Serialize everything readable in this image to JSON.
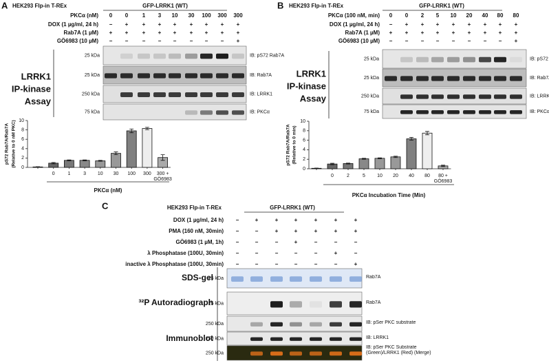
{
  "panels": [
    {
      "label": "A",
      "cell_line": "HEK293 Flp-in T-REx",
      "construct": "GFP-LRRK1 (WT)",
      "conditions": [
        {
          "name": "PKCα (nM)",
          "lanes": [
            "0",
            "0",
            "1",
            "3",
            "10",
            "30",
            "100",
            "300",
            "300"
          ]
        },
        {
          "name": "DOX (1 µg/ml, 24 h)",
          "lanes": [
            "−",
            "+",
            "+",
            "+",
            "+",
            "+",
            "+",
            "+",
            "+"
          ]
        },
        {
          "name": "Rab7A (1 µM)",
          "lanes": [
            "+",
            "+",
            "+",
            "+",
            "+",
            "+",
            "+",
            "+",
            "+"
          ]
        },
        {
          "name": "GÖ6983 (10 µM)",
          "lanes": [
            "−",
            "−",
            "−",
            "−",
            "−",
            "−",
            "−",
            "−",
            "+"
          ]
        }
      ],
      "assay": [
        "LRRK1",
        "IP-kinase",
        "Assay"
      ],
      "blots": [
        {
          "marker": "25 kDa",
          "label": "IB: pS72 Rab7A"
        },
        {
          "marker": "25 kDa",
          "label": "IB: Rab7A"
        },
        {
          "marker": "250 kDa",
          "label": "IB: LRRK1"
        },
        {
          "marker": "75 kDa",
          "label": "IB: PKCα"
        }
      ]
    },
    {
      "label": "B",
      "cell_line": "HEK293 Flp-in T-REx",
      "construct": "GFP-LRRK1 (WT)",
      "conditions": [
        {
          "name": "PKCα (100 nM, min)",
          "lanes": [
            "0",
            "0",
            "2",
            "5",
            "10",
            "20",
            "40",
            "80",
            "80"
          ]
        },
        {
          "name": "DOX (1 µg/ml, 24 h)",
          "lanes": [
            "−",
            "+",
            "+",
            "+",
            "+",
            "+",
            "+",
            "+",
            "+"
          ]
        },
        {
          "name": "Rab7A (1 µM)",
          "lanes": [
            "+",
            "+",
            "+",
            "+",
            "+",
            "+",
            "+",
            "+",
            "+"
          ]
        },
        {
          "name": "GÖ6983 (10 µM)",
          "lanes": [
            "−",
            "−",
            "−",
            "−",
            "−",
            "−",
            "−",
            "−",
            "+"
          ]
        }
      ],
      "assay": [
        "LRRK1",
        "IP-kinase",
        "Assay"
      ],
      "blots": [
        {
          "marker": "25 kDa",
          "label": "IB: pS72 Rab7A"
        },
        {
          "marker": "25 kDa",
          "label": "IB: Rab7A"
        },
        {
          "marker": "250 kDa",
          "label": "IB: LRRK1"
        },
        {
          "marker": "75 kDa",
          "label": "IB: PKCα"
        }
      ]
    },
    {
      "label": "C",
      "cell_line": "HEK293 Flp-in T-REx",
      "construct": "GFP-LRRK1 (WT)",
      "conditions": [
        {
          "name": "DOX (1 µg/ml, 24 h)",
          "lanes": [
            "−",
            "+",
            "+",
            "+",
            "+",
            "+",
            "+"
          ]
        },
        {
          "name": "PMA (160 nM, 30min)",
          "lanes": [
            "−",
            "−",
            "+",
            "+",
            "+",
            "+",
            "+"
          ]
        },
        {
          "name": "GÖ6983 (1 µM, 1h)",
          "lanes": [
            "−",
            "−",
            "−",
            "+",
            "−",
            "−",
            "−"
          ]
        },
        {
          "name": "λ Phosphatase (100U, 30min)",
          "lanes": [
            "−",
            "−",
            "−",
            "−",
            "−",
            "+",
            "−"
          ]
        },
        {
          "name": "inactive λ Phosphatase (100U, 30min)",
          "lanes": [
            "−",
            "−",
            "−",
            "−",
            "−",
            "−",
            "+"
          ]
        }
      ],
      "sections": [
        {
          "title": "SDS-gel",
          "blots": [
            {
              "marker": "25 kDa",
              "label": "Rab7A"
            }
          ]
        },
        {
          "title": "³²P Autoradiograph",
          "blots": [
            {
              "marker": "25 kDa",
              "label": "Rab7A"
            }
          ]
        },
        {
          "title": "Immunoblot",
          "blots": [
            {
              "marker": "250 kDa",
              "label": "IB: pSer PKC substrate"
            },
            {
              "marker": "250 kDa",
              "label": "IB: LRRK1"
            },
            {
              "marker": "250 kDa",
              "label": "IB: pSer PKC Substrate (Green)/LRRK1 (Red) (Merge)"
            }
          ]
        }
      ]
    }
  ],
  "chart_data": [
    {
      "type": "bar",
      "y_label": [
        "pS72 Rab7A/Rab7A",
        "(Relative to 0 nM PKC)"
      ],
      "x_title": "PKCα (nM)",
      "categories": [
        null,
        "0",
        "1",
        "3",
        "10",
        "30",
        "100",
        "300",
        "300 + GÖ6983"
      ],
      "values": [
        0.1,
        0.9,
        1.5,
        1.5,
        1.4,
        3.0,
        7.8,
        8.3,
        2.1
      ],
      "errors": [
        0.05,
        0.15,
        0.1,
        0.1,
        0.1,
        0.3,
        0.4,
        0.25,
        0.6
      ],
      "colors": [
        "#444444",
        "#666666",
        "#777777",
        "#888888",
        "#999999",
        "#999999",
        "#808080",
        "#eeeeee",
        "#aaaaaa"
      ],
      "ylim": [
        0,
        10
      ],
      "yticks": [
        0,
        2,
        4,
        6,
        8,
        10
      ]
    },
    {
      "type": "bar",
      "y_label": [
        "pS72 Rab7A/Rab7A",
        "(Relative to 0 min)"
      ],
      "x_title": "PKCα Incubation Time (Min)",
      "categories": [
        null,
        "0",
        "2",
        "5",
        "10",
        "20",
        "40",
        "80",
        "80 + GÖ6983"
      ],
      "values": [
        0.1,
        1.0,
        1.1,
        2.1,
        2.2,
        2.5,
        6.3,
        7.5,
        0.6
      ],
      "errors": [
        0.05,
        0.15,
        0.1,
        0.1,
        0.1,
        0.15,
        0.3,
        0.35,
        0.15
      ],
      "colors": [
        "#444444",
        "#666666",
        "#777777",
        "#888888",
        "#999999",
        "#999999",
        "#808080",
        "#eeeeee",
        "#aaaaaa"
      ],
      "ylim": [
        0,
        10
      ],
      "yticks": [
        0,
        2,
        4,
        6,
        8,
        10
      ]
    }
  ]
}
